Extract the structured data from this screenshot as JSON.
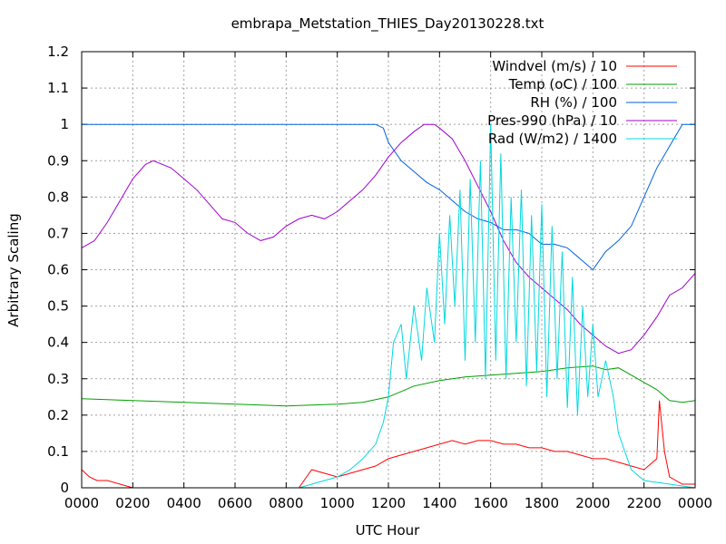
{
  "chart_data": {
    "type": "line",
    "title": "embrapa_Metstation_THIES_Day20130228.txt",
    "xlabel": "UTC Hour",
    "ylabel": "Arbitrary Scaling",
    "xlim": [
      0,
      2400
    ],
    "ylim": [
      0,
      1.2
    ],
    "grid": true,
    "legend_position": "top-right",
    "x_ticks": [
      "0000",
      "0200",
      "0400",
      "0600",
      "0800",
      "1000",
      "1200",
      "1400",
      "1600",
      "1800",
      "2000",
      "2200",
      "0000"
    ],
    "y_ticks": [
      "0",
      "0.1",
      "0.2",
      "0.3",
      "0.4",
      "0.5",
      "0.6",
      "0.7",
      "0.8",
      "0.9",
      "1",
      "1.1",
      "1.2"
    ],
    "series": [
      {
        "name": "Windvel (m/s) / 10",
        "color": "#ff0000",
        "x": [
          0,
          30,
          60,
          100,
          150,
          200,
          300,
          500,
          700,
          850,
          870,
          900,
          950,
          1000,
          1050,
          1100,
          1150,
          1200,
          1250,
          1300,
          1350,
          1400,
          1450,
          1500,
          1550,
          1600,
          1650,
          1700,
          1750,
          1800,
          1850,
          1900,
          1950,
          2000,
          2050,
          2100,
          2150,
          2200,
          2250,
          2260,
          2280,
          2300,
          2350,
          2400
        ],
        "y": [
          0.05,
          0.03,
          0.02,
          0.02,
          0.01,
          0,
          0,
          0,
          0,
          0,
          0.02,
          0.05,
          0.04,
          0.03,
          0.04,
          0.05,
          0.06,
          0.08,
          0.09,
          0.1,
          0.11,
          0.12,
          0.13,
          0.12,
          0.13,
          0.13,
          0.12,
          0.12,
          0.11,
          0.11,
          0.1,
          0.1,
          0.09,
          0.08,
          0.08,
          0.07,
          0.06,
          0.05,
          0.08,
          0.24,
          0.1,
          0.03,
          0.01,
          0.01
        ]
      },
      {
        "name": "Temp (oC) / 100",
        "color": "#00a000",
        "x": [
          0,
          200,
          400,
          600,
          800,
          1000,
          1100,
          1200,
          1300,
          1400,
          1500,
          1600,
          1700,
          1800,
          1900,
          2000,
          2050,
          2100,
          2150,
          2200,
          2250,
          2300,
          2350,
          2400
        ],
        "y": [
          0.245,
          0.24,
          0.235,
          0.23,
          0.225,
          0.23,
          0.235,
          0.25,
          0.28,
          0.295,
          0.305,
          0.31,
          0.315,
          0.32,
          0.33,
          0.335,
          0.325,
          0.33,
          0.31,
          0.29,
          0.27,
          0.24,
          0.235,
          0.24
        ]
      },
      {
        "name": "RH (%) / 100",
        "color": "#0060e0",
        "x": [
          0,
          200,
          400,
          600,
          800,
          1000,
          1150,
          1180,
          1200,
          1250,
          1300,
          1350,
          1400,
          1450,
          1500,
          1550,
          1600,
          1650,
          1700,
          1750,
          1800,
          1850,
          1900,
          1950,
          2000,
          2050,
          2100,
          2150,
          2200,
          2250,
          2300,
          2350,
          2400
        ],
        "y": [
          1,
          1,
          1,
          1,
          1,
          1,
          1,
          0.99,
          0.95,
          0.9,
          0.87,
          0.84,
          0.82,
          0.79,
          0.76,
          0.74,
          0.73,
          0.71,
          0.71,
          0.7,
          0.67,
          0.67,
          0.66,
          0.63,
          0.6,
          0.65,
          0.68,
          0.72,
          0.8,
          0.88,
          0.94,
          1,
          1
        ]
      },
      {
        "name": "Pres-990 (hPa) / 10",
        "color": "#a000d0",
        "x": [
          0,
          50,
          100,
          150,
          200,
          250,
          280,
          350,
          400,
          450,
          500,
          550,
          600,
          650,
          700,
          750,
          800,
          850,
          900,
          950,
          1000,
          1050,
          1100,
          1150,
          1200,
          1250,
          1300,
          1340,
          1380,
          1400,
          1450,
          1500,
          1550,
          1600,
          1650,
          1700,
          1750,
          1800,
          1850,
          1900,
          1950,
          2000,
          2050,
          2100,
          2150,
          2200,
          2250,
          2300,
          2350,
          2400
        ],
        "y": [
          0.66,
          0.68,
          0.73,
          0.79,
          0.85,
          0.89,
          0.9,
          0.88,
          0.85,
          0.82,
          0.78,
          0.74,
          0.73,
          0.7,
          0.68,
          0.69,
          0.72,
          0.74,
          0.75,
          0.74,
          0.76,
          0.79,
          0.82,
          0.86,
          0.91,
          0.95,
          0.98,
          1.0,
          1.0,
          0.99,
          0.96,
          0.9,
          0.83,
          0.76,
          0.68,
          0.62,
          0.58,
          0.55,
          0.52,
          0.49,
          0.45,
          0.42,
          0.39,
          0.37,
          0.38,
          0.42,
          0.47,
          0.53,
          0.55,
          0.59
        ]
      },
      {
        "name": "Rad (W/m2) / 1400",
        "color": "#00d8e0",
        "x": [
          0,
          600,
          850,
          900,
          950,
          1000,
          1050,
          1100,
          1150,
          1180,
          1200,
          1220,
          1250,
          1270,
          1300,
          1330,
          1350,
          1380,
          1400,
          1420,
          1440,
          1460,
          1480,
          1500,
          1520,
          1540,
          1560,
          1580,
          1600,
          1620,
          1640,
          1660,
          1680,
          1700,
          1720,
          1740,
          1760,
          1780,
          1800,
          1820,
          1840,
          1860,
          1880,
          1900,
          1920,
          1940,
          1960,
          1980,
          2000,
          2020,
          2050,
          2080,
          2100,
          2150,
          2200,
          2300,
          2400
        ],
        "y": [
          0,
          0,
          0,
          0.01,
          0.02,
          0.03,
          0.05,
          0.08,
          0.12,
          0.18,
          0.25,
          0.4,
          0.45,
          0.3,
          0.5,
          0.35,
          0.55,
          0.4,
          0.7,
          0.45,
          0.75,
          0.5,
          0.82,
          0.35,
          0.85,
          0.4,
          0.9,
          0.3,
          1.0,
          0.35,
          0.92,
          0.3,
          0.8,
          0.4,
          0.82,
          0.28,
          0.75,
          0.32,
          0.78,
          0.25,
          0.72,
          0.3,
          0.65,
          0.22,
          0.58,
          0.2,
          0.5,
          0.25,
          0.45,
          0.25,
          0.35,
          0.25,
          0.15,
          0.05,
          0.02,
          0.01,
          0
        ]
      }
    ]
  }
}
